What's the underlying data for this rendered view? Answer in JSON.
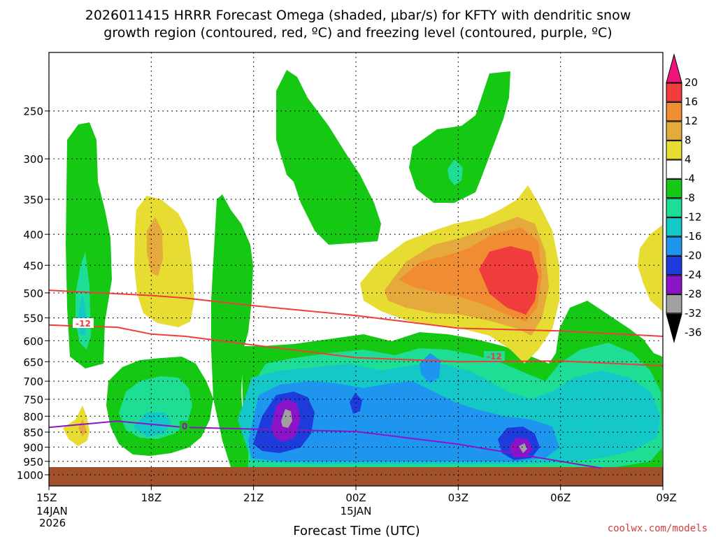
{
  "chart_data": {
    "type": "heatmap",
    "title_line1": "2026011415 HRRR Forecast Omega (shaded, µbar/s) for KFTY with dendritic snow",
    "title_line2": "growth region (contoured, red, ºC) and freezing level (contoured, purple, ºC)",
    "xlabel": "Forecast Time (UTC)",
    "credit": "coolwx.com/models",
    "x_ticks": [
      {
        "label": "15Z",
        "sub1": "14JAN",
        "sub2": "2026",
        "hour": 0
      },
      {
        "label": "18Z",
        "sub1": "",
        "sub2": "",
        "hour": 3
      },
      {
        "label": "21Z",
        "sub1": "",
        "sub2": "",
        "hour": 6
      },
      {
        "label": "00Z",
        "sub1": "15JAN",
        "sub2": "",
        "hour": 9
      },
      {
        "label": "03Z",
        "sub1": "",
        "sub2": "",
        "hour": 12
      },
      {
        "label": "06Z",
        "sub1": "",
        "sub2": "",
        "hour": 15
      },
      {
        "label": "09Z",
        "sub1": "",
        "sub2": "",
        "hour": 18
      }
    ],
    "y_ticks": [
      {
        "label": "250",
        "p": 250
      },
      {
        "label": "300",
        "p": 300
      },
      {
        "label": "350",
        "p": 350
      },
      {
        "label": "400",
        "p": 400
      },
      {
        "label": "450",
        "p": 450
      },
      {
        "label": "500",
        "p": 500
      },
      {
        "label": "550",
        "p": 550
      },
      {
        "label": "600",
        "p": 600
      },
      {
        "label": "650",
        "p": 650
      },
      {
        "label": "700",
        "p": 700
      },
      {
        "label": "750",
        "p": 750
      },
      {
        "label": "800",
        "p": 800
      },
      {
        "label": "850",
        "p": 850
      },
      {
        "label": "900",
        "p": 900
      },
      {
        "label": "950",
        "p": 950
      },
      {
        "label": "1000",
        "p": 1000
      }
    ],
    "xlim": [
      0,
      18
    ],
    "ylim": [
      200,
      1000
    ],
    "y_scale": "pressure (reversed, approx. log)",
    "grid": true,
    "colorbar": {
      "labels": [
        "20",
        "16",
        "12",
        "8",
        "4",
        "-4",
        "-8",
        "-12",
        "-16",
        "-20",
        "-24",
        "-28",
        "-32",
        "-36"
      ],
      "colors": [
        "#f0147a",
        "#f03c3c",
        "#f08c32",
        "#e6aa3c",
        "#e6dc32",
        "#ffffff",
        "#14c814",
        "#1ede96",
        "#14c8c8",
        "#1e96f0",
        "#1e3cdc",
        "#8c14c8",
        "#a0a0a0",
        "#000000"
      ]
    },
    "contours": {
      "red_label": "-12",
      "purple_label": "0",
      "temp_upper_-12C": [
        [
          0,
          495
        ],
        [
          3,
          505
        ],
        [
          4,
          510
        ],
        [
          6,
          525
        ],
        [
          9,
          545
        ],
        [
          12,
          572
        ],
        [
          15,
          578
        ],
        [
          18,
          590
        ]
      ],
      "temp_lower_-12C": [
        [
          0,
          565
        ],
        [
          1,
          568
        ],
        [
          2,
          570
        ],
        [
          3,
          585
        ],
        [
          4,
          590
        ],
        [
          6,
          610
        ],
        [
          9,
          640
        ],
        [
          12,
          650
        ],
        [
          15,
          648
        ],
        [
          18,
          660
        ]
      ],
      "freezing_level_0C": [
        [
          0,
          835
        ],
        [
          2,
          815
        ],
        [
          4,
          835
        ],
        [
          6,
          840
        ],
        [
          9,
          848
        ],
        [
          12,
          890
        ],
        [
          15,
          950
        ],
        [
          16.2,
          975
        ]
      ]
    },
    "ground_level_p": 975
  }
}
